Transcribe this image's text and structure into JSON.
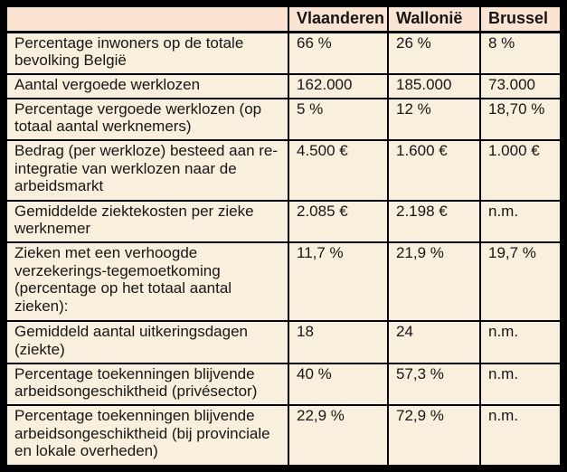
{
  "table": {
    "columns": [
      "",
      "Vlaanderen",
      "Wallonië",
      "Brussel"
    ],
    "rows": [
      {
        "label": "Percentage inwoners op de totale bevolking België",
        "values": [
          "66 %",
          "26 %",
          "8 %"
        ]
      },
      {
        "label": "Aantal vergoede werklozen",
        "values": [
          "162.000",
          "185.000",
          "73.000"
        ]
      },
      {
        "label": "Percentage vergoede werklozen (op totaal aantal werknemers)",
        "values": [
          "5 %",
          "12 %",
          "18,70 %"
        ]
      },
      {
        "label": "Bedrag (per werkloze) besteed aan re-integratie van werklozen naar de arbeidsmarkt",
        "values": [
          "4.500 €",
          "1.600 €",
          "1.000 €"
        ]
      },
      {
        "label": "Gemiddelde ziektekosten per zieke werknemer",
        "values": [
          "2.085 €",
          "2.198 €",
          "n.m."
        ]
      },
      {
        "label": "Zieken met een verhoogde verzekerings-tegemoetkoming (percentage op het totaal aantal zieken):",
        "values": [
          "11,7 %",
          "21,9 %",
          "19,7 %"
        ]
      },
      {
        "label": "Gemiddeld aantal uitkeringsdagen (ziekte)",
        "values": [
          "18",
          "24",
          "n.m."
        ]
      },
      {
        "label": "Percentage toekenningen blijvende arbeidsongeschiktheid (privésector)",
        "values": [
          "40 %",
          "57,3 %",
          "n.m."
        ]
      },
      {
        "label": "Percentage toekenningen blijvende arbeidsongeschiktheid (bij provinciale en lokale overheden)",
        "values": [
          "22,9 %",
          "72,9 %",
          "n.m."
        ]
      }
    ]
  },
  "colors": {
    "header_bg": "#fce4d3",
    "body_bg": "#f9efdd",
    "border": "#000000",
    "text": "#161616"
  },
  "chart_data": {
    "type": "table",
    "title": "",
    "columns": [
      "",
      "Vlaanderen",
      "Wallonië",
      "Brussel"
    ],
    "rows": [
      [
        "Percentage inwoners op de totale bevolking België",
        "66 %",
        "26 %",
        "8 %"
      ],
      [
        "Aantal vergoede werklozen",
        "162.000",
        "185.000",
        "73.000"
      ],
      [
        "Percentage vergoede werklozen (op totaal aantal werknemers)",
        "5 %",
        "12 %",
        "18,70 %"
      ],
      [
        "Bedrag (per werkloze) besteed aan re-integratie van werklozen naar de arbeidsmarkt",
        "4.500 €",
        "1.600 €",
        "1.000 €"
      ],
      [
        "Gemiddelde ziektekosten per zieke werknemer",
        "2.085 €",
        "2.198 €",
        "n.m."
      ],
      [
        "Zieken met een verhoogde verzekerings-tegemoetkoming (percentage op het totaal aantal zieken):",
        "11,7 %",
        "21,9 %",
        "19,7 %"
      ],
      [
        "Gemiddeld aantal uitkeringsdagen (ziekte)",
        "18",
        "24",
        "n.m."
      ],
      [
        "Percentage toekenningen blijvende arbeidsongeschiktheid (privésector)",
        "40 %",
        "57,3 %",
        "n.m."
      ],
      [
        "Percentage toekenningen blijvende arbeidsongeschiktheid (bij provinciale en lokale overheden)",
        "22,9 %",
        "72,9 %",
        "n.m."
      ]
    ]
  }
}
